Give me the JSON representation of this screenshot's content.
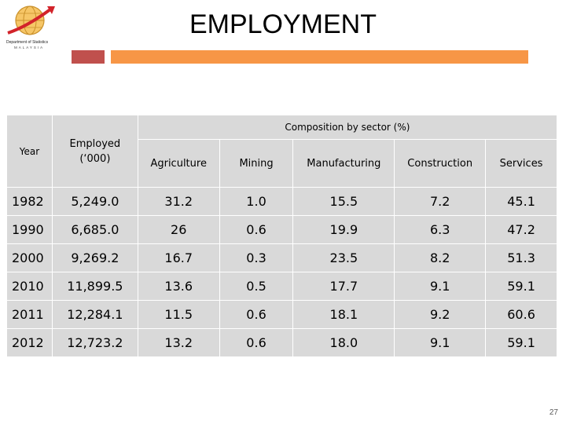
{
  "logo": {
    "name": "Department of Statistics",
    "country": "MALAYSIA"
  },
  "title": "EMPLOYMENT",
  "colors": {
    "orange_bar": "#f79646",
    "red_bar": "#c0504d",
    "table_bg": "#d9d9d9"
  },
  "table": {
    "headers": {
      "year": "Year",
      "employed": "Employed",
      "employed_unit": "(‘000)",
      "composition": "Composition by sector (%)",
      "sectors": [
        "Agriculture",
        "Mining",
        "Manufacturing",
        "Construction",
        "Services"
      ]
    },
    "rows": [
      {
        "year": "1982",
        "employed": "5,249.0",
        "agriculture": "31.2",
        "mining": "1.0",
        "manufacturing": "15.5",
        "construction": "7.2",
        "services": "45.1"
      },
      {
        "year": "1990",
        "employed": "6,685.0",
        "agriculture": "26",
        "mining": "0.6",
        "manufacturing": "19.9",
        "construction": "6.3",
        "services": "47.2"
      },
      {
        "year": "2000",
        "employed": "9,269.2",
        "agriculture": "16.7",
        "mining": "0.3",
        "manufacturing": "23.5",
        "construction": "8.2",
        "services": "51.3"
      },
      {
        "year": "2010",
        "employed": "11,899.5",
        "agriculture": "13.6",
        "mining": "0.5",
        "manufacturing": "17.7",
        "construction": "9.1",
        "services": "59.1"
      },
      {
        "year": "2011",
        "employed": "12,284.1",
        "agriculture": "11.5",
        "mining": "0.6",
        "manufacturing": "18.1",
        "construction": "9.2",
        "services": "60.6"
      },
      {
        "year": "2012",
        "employed": "12,723.2",
        "agriculture": "13.2",
        "mining": "0.6",
        "manufacturing": "18.0",
        "construction": "9.1",
        "services": "59.1"
      }
    ]
  },
  "page_number": "27"
}
